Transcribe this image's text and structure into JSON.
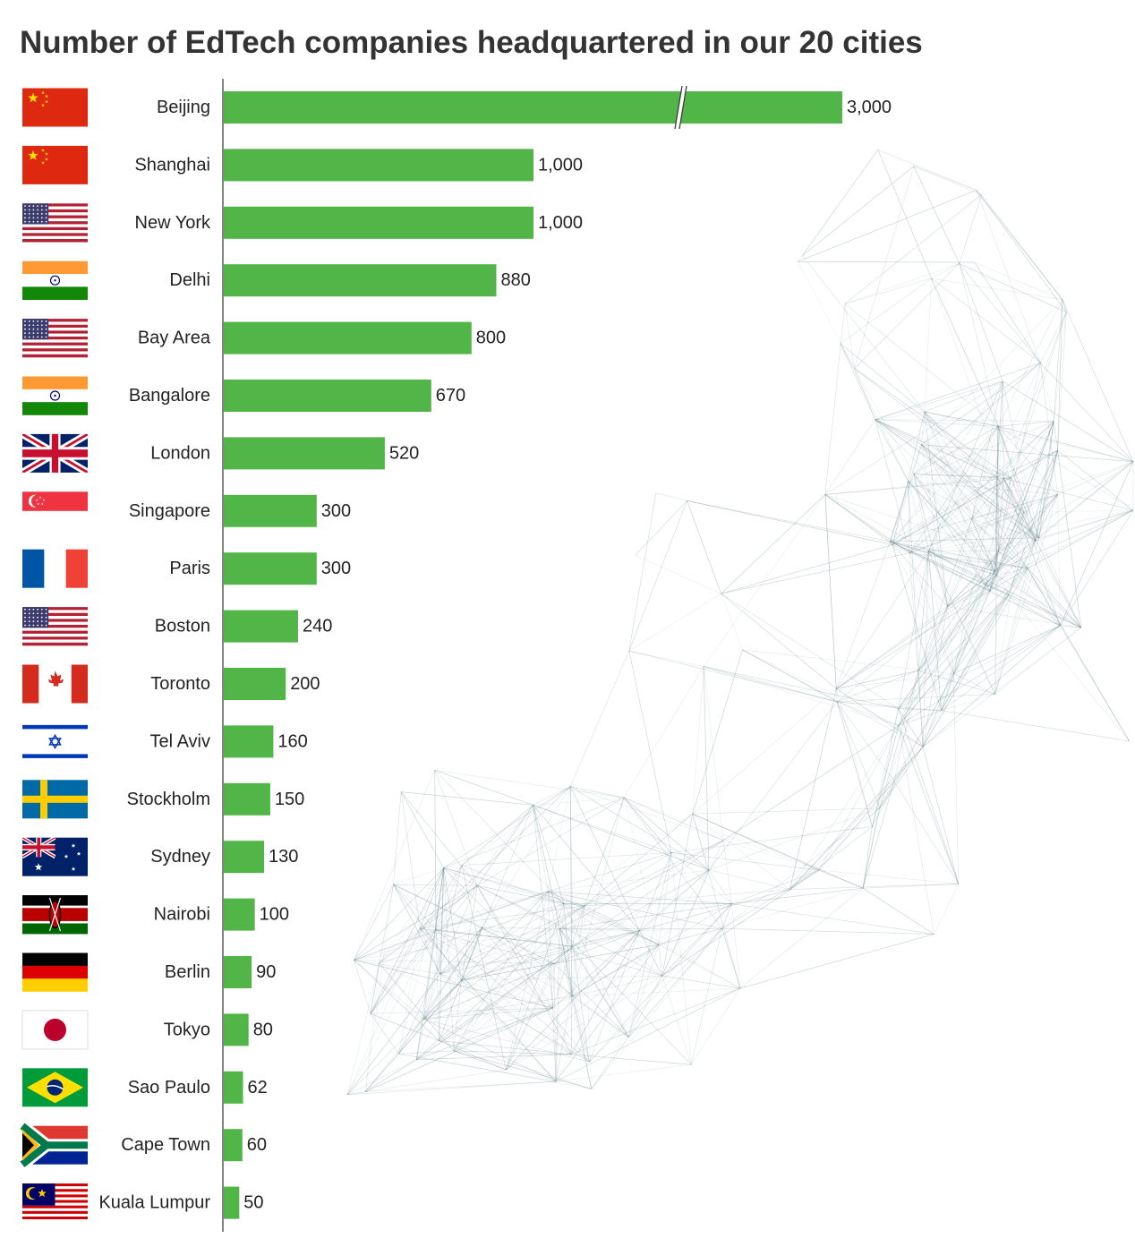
{
  "chart_data": {
    "type": "bar",
    "orientation": "horizontal",
    "title": "Number of EdTech companies headquartered in our 20 cities",
    "categories": [
      "Beijing",
      "Shanghai",
      "New York",
      "Delhi",
      "Bay Area",
      "Bangalore",
      "London",
      "Singapore",
      "Paris",
      "Boston",
      "Toronto",
      "Tel Aviv",
      "Stockholm",
      "Sydney",
      "Nairobi",
      "Berlin",
      "Tokyo",
      "Sao Paulo",
      "Cape Town",
      "Kuala Lumpur"
    ],
    "values": [
      3000,
      1000,
      1000,
      880,
      800,
      670,
      520,
      300,
      300,
      240,
      200,
      160,
      150,
      130,
      100,
      90,
      80,
      62,
      60,
      50
    ],
    "value_labels": [
      "3,000",
      "1,000",
      "1,000",
      "880",
      "800",
      "670",
      "520",
      "300",
      "300",
      "240",
      "200",
      "160",
      "150",
      "130",
      "100",
      "90",
      "80",
      "62",
      "60",
      "50"
    ],
    "flags": [
      "china",
      "china",
      "usa",
      "india",
      "usa",
      "india",
      "uk",
      "singapore",
      "france",
      "usa",
      "canada",
      "israel",
      "sweden",
      "australia",
      "kenya",
      "germany",
      "japan",
      "brazil",
      "south-africa",
      "malaysia"
    ],
    "axis_break": {
      "category": "Beijing"
    },
    "bar_color": "#52b548",
    "grid": false
  }
}
